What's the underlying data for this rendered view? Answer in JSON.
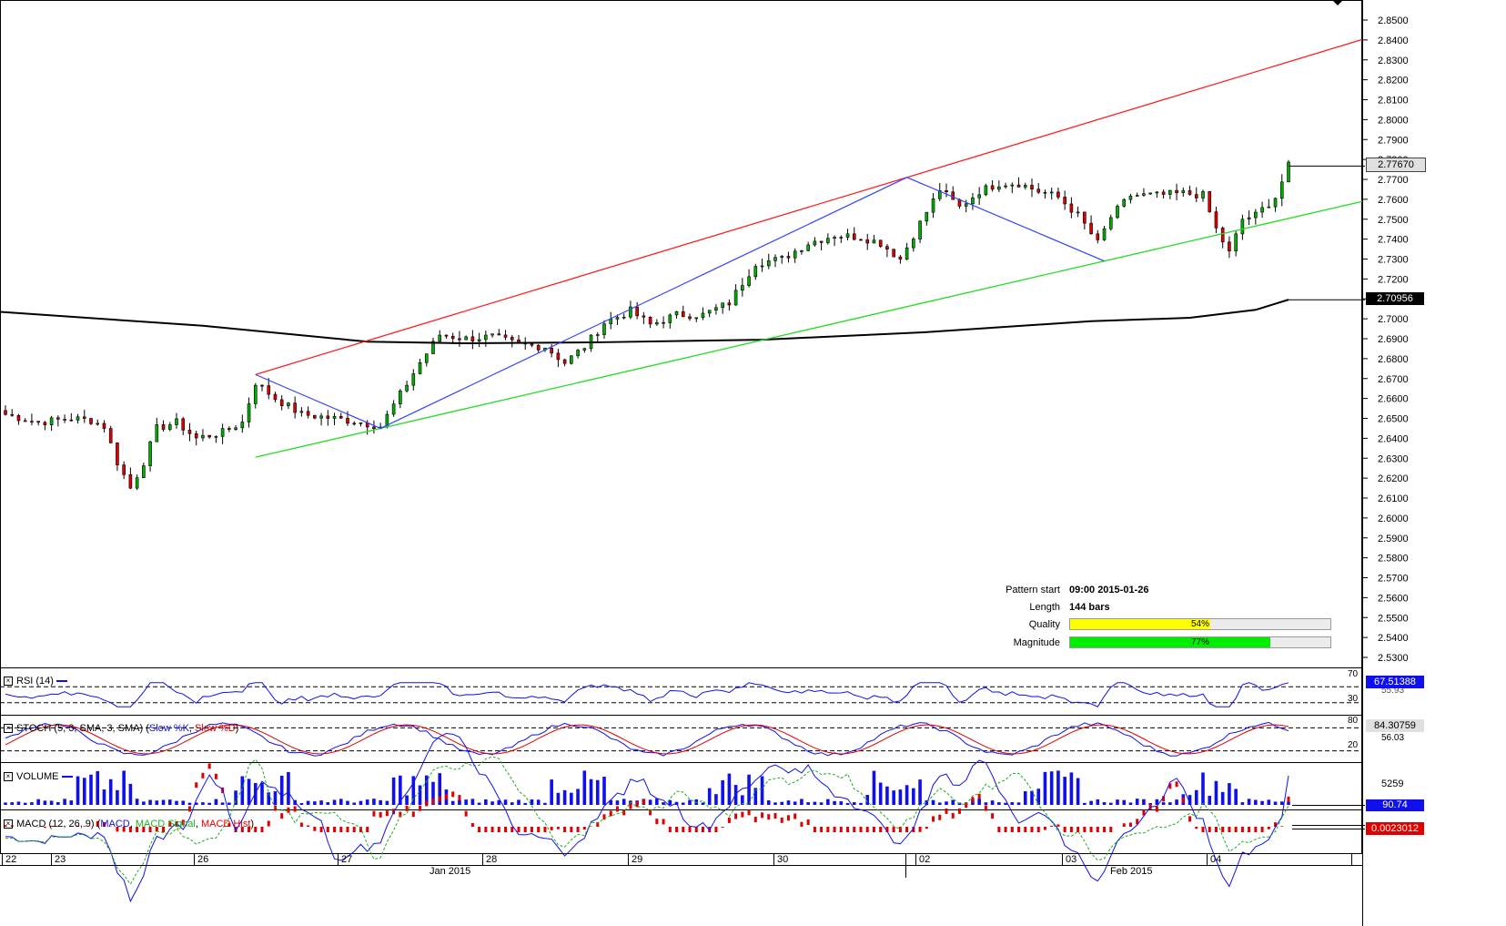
{
  "colors": {
    "bull": "#00b000",
    "bear": "#e00000",
    "channel_upper": "#ff2020",
    "channel_lower": "#22dd22",
    "zigzag": "#3344ff",
    "ma": "#000000",
    "volume": "#1010ee",
    "quality_fill": "#ffff00",
    "magnitude_fill": "#00ee00",
    "panel_border": "#000000"
  },
  "chart_data": [
    {
      "type": "candlestick",
      "title": "",
      "yaxis_ticks": [
        "2.8500",
        "2.8400",
        "2.8300",
        "2.8200",
        "2.8100",
        "2.8000",
        "2.7900",
        "2.7800",
        "2.7700",
        "2.7600",
        "2.7500",
        "2.7400",
        "2.7300",
        "2.7200",
        "2.7100",
        "2.7000",
        "2.6900",
        "2.6800",
        "2.6700",
        "2.6600",
        "2.6500",
        "2.6400",
        "2.6300",
        "2.6200",
        "2.6100",
        "2.6000",
        "2.5900",
        "2.5800",
        "2.5700",
        "2.5600",
        "2.5500",
        "2.5400",
        "2.5300"
      ],
      "ylim": [
        2.525,
        2.858
      ],
      "last_price_label": "2.77670",
      "last_price": 2.7767,
      "ma_label": "2.70956",
      "ma_value": 2.70956,
      "pattern_anchor_points": [
        {
          "bar": 38,
          "price": 2.672
        },
        {
          "bar": 57,
          "price": 2.645
        },
        {
          "bar": 137,
          "price": 2.771
        },
        {
          "bar": 167,
          "price": 2.729
        }
      ],
      "ma_points": [
        {
          "bar": 0,
          "price": 2.7035
        },
        {
          "bar": 30,
          "price": 2.6965
        },
        {
          "bar": 55,
          "price": 2.6885
        },
        {
          "bar": 70,
          "price": 2.6877
        },
        {
          "bar": 90,
          "price": 2.6882
        },
        {
          "bar": 115,
          "price": 2.6895
        },
        {
          "bar": 140,
          "price": 2.6933
        },
        {
          "bar": 165,
          "price": 2.6988
        },
        {
          "bar": 180,
          "price": 2.7005
        },
        {
          "bar": 190,
          "price": 2.7045
        },
        {
          "bar": 195,
          "price": 2.7096
        }
      ]
    },
    {
      "type": "line",
      "name": "RSI",
      "label": "RSI (14)",
      "levels": [
        "70",
        "30"
      ],
      "value_label": "67.51388",
      "secondary_label": "55.93"
    },
    {
      "type": "line",
      "name": "STOCH",
      "label_prefix": "STOCH (5, 3, SMA, 3, SMA) (",
      "series": [
        {
          "name": "Slow %K"
        },
        {
          "name": "Slow %D"
        }
      ],
      "label_suffix": ")",
      "levels": [
        "80",
        "20"
      ],
      "value_label": "84.30759",
      "secondary_label": "56.03"
    },
    {
      "type": "bar",
      "name": "VOLUME",
      "label": "VOLUME",
      "max_label": "5259",
      "value_label": "90.74"
    },
    {
      "type": "line",
      "name": "MACD",
      "label_prefix": "MACD (12, 26, 9) (",
      "series": [
        {
          "name": "MACD"
        },
        {
          "name": "MACD Signal"
        },
        {
          "name": "MACD Hist"
        }
      ],
      "label_suffix": ")",
      "value_label": "0.0023012"
    }
  ],
  "xaxis": {
    "day_labels": [
      "22",
      "23",
      "26",
      "27",
      "28",
      "29",
      "30",
      "02",
      "03",
      "04"
    ],
    "month_labels": [
      "Jan 2015",
      "Feb 2015"
    ]
  },
  "pattern_info": {
    "start_label": "Pattern start",
    "start_value": "09:00 2015-01-26",
    "length_label": "Length",
    "length_value": "144 bars",
    "quality_label": "Quality",
    "quality_value": "54%",
    "quality_fraction": 0.54,
    "magnitude_label": "Magnitude",
    "magnitude_value": "77%",
    "magnitude_fraction": 0.77
  }
}
